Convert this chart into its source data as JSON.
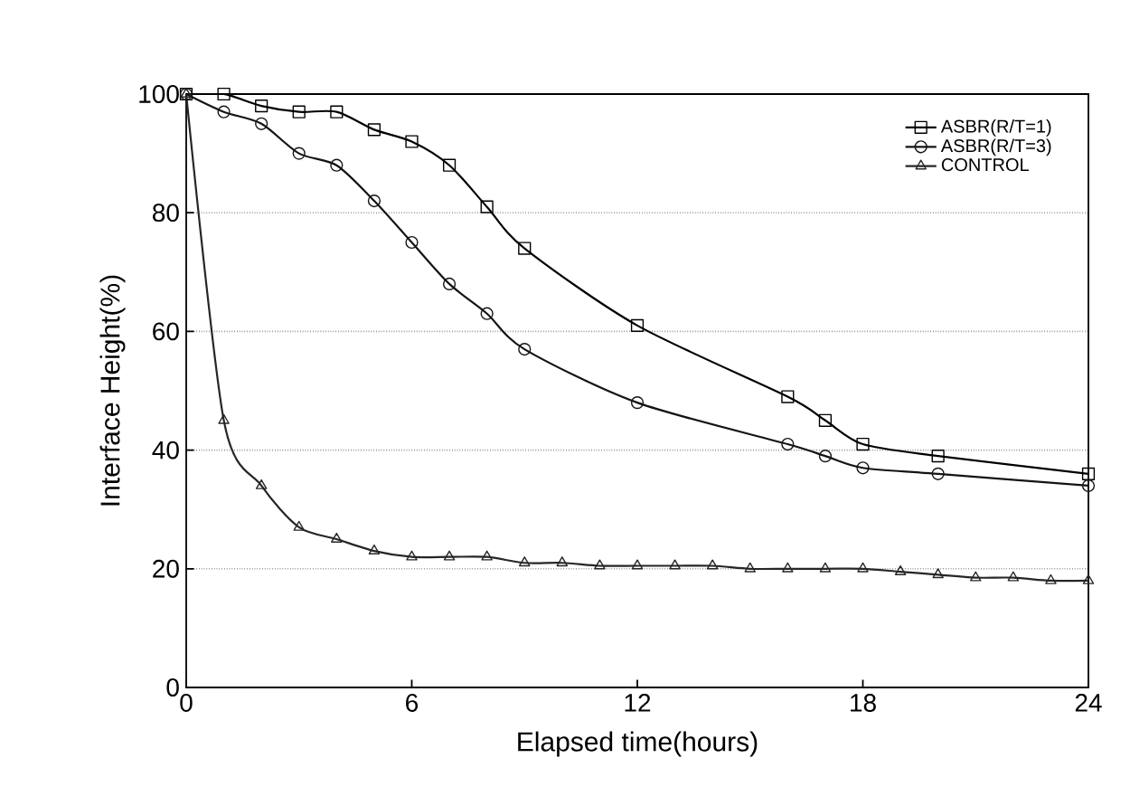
{
  "chart_data": {
    "type": "line",
    "xlabel": "Elapsed time(hours)",
    "ylabel": "Interface Height(%)",
    "xlim": [
      0,
      24
    ],
    "ylim": [
      0,
      100
    ],
    "xticks": [
      0,
      6,
      12,
      18,
      24
    ],
    "yticks": [
      0,
      20,
      40,
      60,
      80,
      100
    ],
    "grid": "y",
    "legend": "top right",
    "series": [
      {
        "name": "ASBR(R/T=1)",
        "color": "#000000",
        "marker": "square",
        "x": [
          0,
          1,
          2,
          3,
          4,
          5,
          6,
          7,
          8,
          9,
          12,
          16,
          17,
          18,
          20,
          24
        ],
        "values": [
          100,
          100,
          98,
          97,
          97,
          94,
          92,
          88,
          81,
          74,
          61,
          49,
          45,
          41,
          39,
          36
        ]
      },
      {
        "name": "ASBR(R/T=3)",
        "color": "#141414",
        "marker": "circle",
        "x": [
          0,
          1,
          2,
          3,
          4,
          5,
          6,
          7,
          8,
          9,
          12,
          16,
          17,
          18,
          20,
          24
        ],
        "values": [
          100,
          97,
          95,
          90,
          88,
          82,
          75,
          68,
          63,
          57,
          48,
          41,
          39,
          37,
          36,
          34
        ]
      },
      {
        "name": "CONTROL",
        "color": "#262626",
        "marker": "triangle",
        "x": [
          0,
          1,
          2,
          3,
          4,
          5,
          6,
          7,
          8,
          9,
          10,
          11,
          12,
          13,
          14,
          15,
          16,
          17,
          18,
          19,
          20,
          21,
          22,
          23,
          24
        ],
        "values": [
          100,
          45,
          34,
          27,
          25,
          23,
          22,
          22,
          22,
          21,
          21,
          20.5,
          20.5,
          20.5,
          20.5,
          20,
          20,
          20,
          20,
          19.5,
          19,
          18.5,
          18.5,
          18,
          18
        ]
      }
    ]
  }
}
